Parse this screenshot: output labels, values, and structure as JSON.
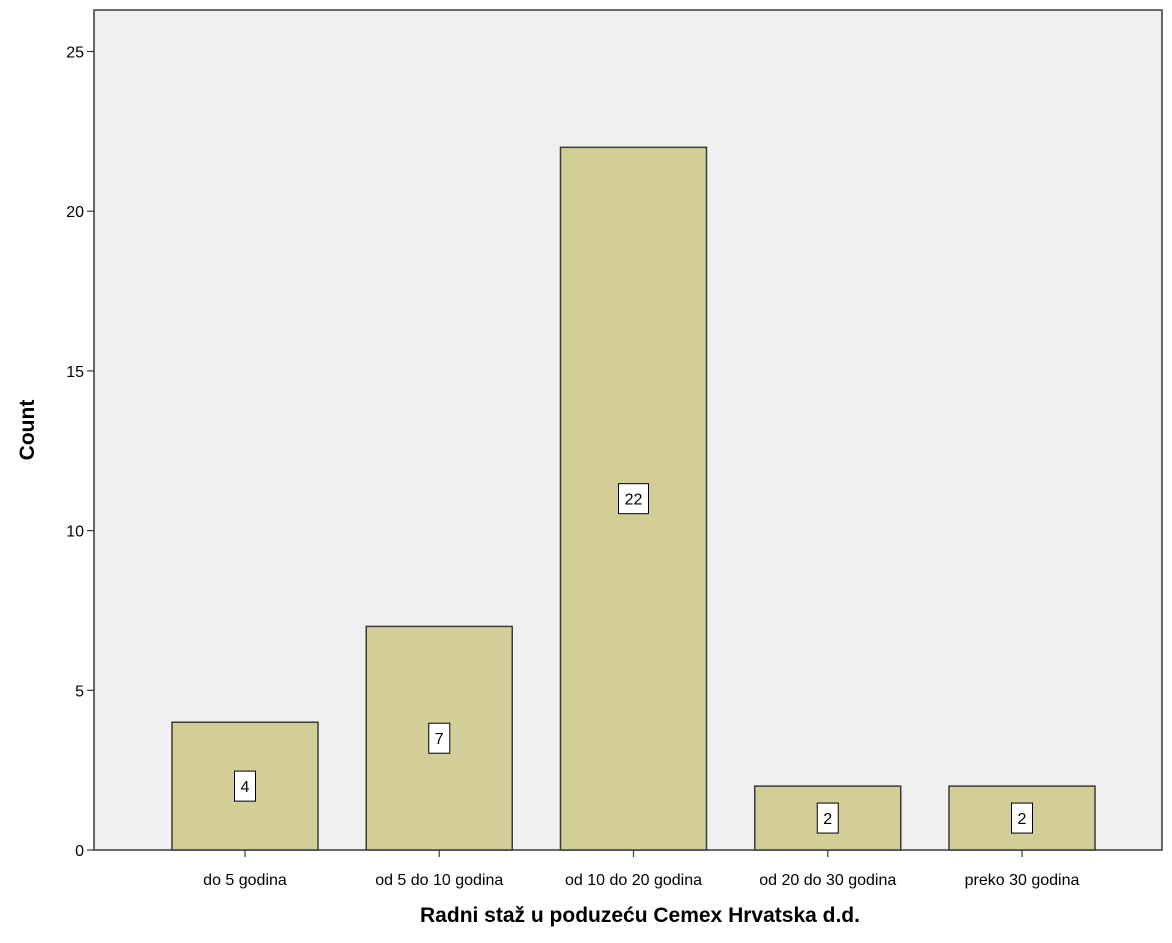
{
  "chart_data": {
    "type": "bar",
    "categories": [
      "do 5 godina",
      "od 5 do 10 godina",
      "od 10 do 20 godina",
      "od 20 do 30 godina",
      "preko 30 godina"
    ],
    "values": [
      4,
      7,
      22,
      2,
      2
    ],
    "data_labels": [
      "4",
      "7",
      "22",
      "2",
      "2"
    ],
    "xlabel": "Radni staž u poduzeću Cemex Hrvatska d.d.",
    "ylabel": "Count",
    "ylim": [
      0,
      26.3
    ],
    "yticks": [
      0,
      5,
      10,
      15,
      20,
      25
    ],
    "ytick_labels": [
      "0",
      "5",
      "10",
      "15",
      "20",
      "25"
    ],
    "grid": false,
    "legend": "none",
    "colors": {
      "bar_fill": "#d3cd98",
      "bar_stroke": "#3a3a3a",
      "plot_background": "#f0f0f0",
      "axis": "#3a3a3a",
      "label_box_fill": "#ffffff"
    }
  }
}
